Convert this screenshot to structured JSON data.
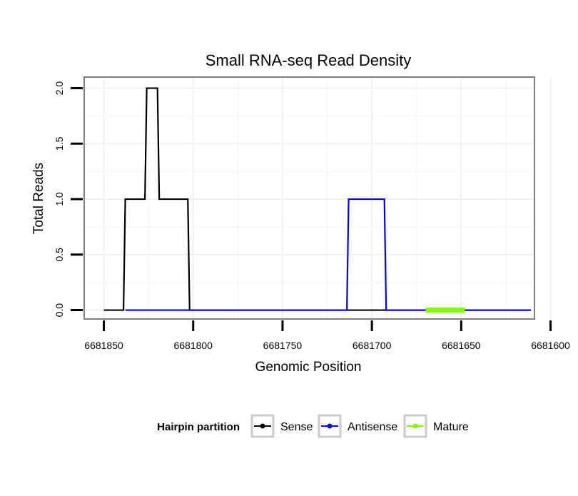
{
  "chart_data": {
    "type": "line",
    "title": "Small RNA-seq Read Density",
    "xlabel": "Genomic Position",
    "ylabel": "Total Reads",
    "xlim": [
      6681861,
      6681609
    ],
    "ylim": [
      -0.08,
      2.1
    ],
    "x_reversed": true,
    "grid": true,
    "x_ticks": [
      6681850,
      6681800,
      6681750,
      6681700,
      6681650,
      6681600
    ],
    "x_tick_labels": [
      "6681850",
      "6681800",
      "6681750",
      "6681700",
      "6681650",
      "6681600"
    ],
    "y_ticks": [
      0.0,
      0.5,
      1.0,
      1.5,
      2.0
    ],
    "y_tick_labels": [
      "0.0",
      "0.5",
      "1.0",
      "1.5",
      "2.0"
    ],
    "series": [
      {
        "name": "Sense",
        "color": "#000000",
        "points": [
          [
            6681850,
            0
          ],
          [
            6681839,
            0
          ],
          [
            6681838,
            1
          ],
          [
            6681827,
            1
          ],
          [
            6681826,
            2
          ],
          [
            6681820,
            2
          ],
          [
            6681819,
            1
          ],
          [
            6681803,
            1
          ],
          [
            6681802,
            0
          ],
          [
            6681611,
            0
          ]
        ]
      },
      {
        "name": "Antisense",
        "color": "#0000ff",
        "points": [
          [
            6681838,
            0
          ],
          [
            6681802,
            0
          ],
          [
            6681714,
            0
          ],
          [
            6681713,
            1
          ],
          [
            6681693,
            1
          ],
          [
            6681692,
            0
          ],
          [
            6681611,
            0
          ]
        ]
      },
      {
        "name": "Mature",
        "color": "#7fff00",
        "points": [
          [
            6681670,
            0
          ],
          [
            6681648,
            0
          ]
        ]
      }
    ],
    "legend": {
      "title": "Hairpin partition",
      "position": "bottom",
      "entries": [
        {
          "label": "Sense",
          "color": "#000000"
        },
        {
          "label": "Antisense",
          "color": "#0000ff"
        },
        {
          "label": "Mature",
          "color": "#7fff00"
        }
      ]
    }
  }
}
